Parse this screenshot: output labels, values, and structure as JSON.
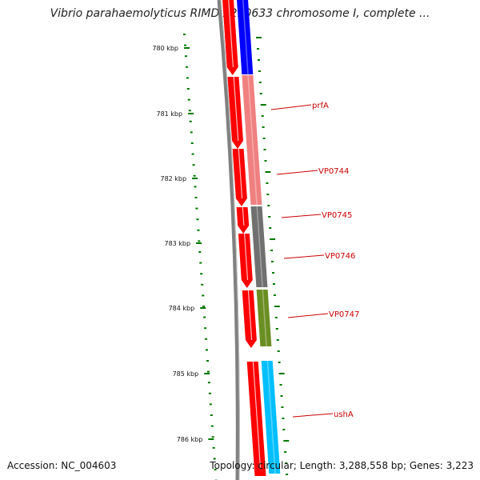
{
  "title": "Vibrio parahaemolyticus RIMD 2210633 chromosome I, complete ...",
  "footer": {
    "accession": "Accession: NC_004603",
    "stats": "Topology: circular; Length: 3,288,558 bp; Genes: 3,223"
  },
  "colors": {
    "strand": "#ff0000",
    "backbone": "#808080",
    "tick": "#007700",
    "label": "#cc0000"
  },
  "scale": {
    "labels": [
      "780 kbp",
      "781 kbp",
      "782 kbp",
      "783 kbp",
      "784 kbp",
      "785 kbp",
      "786 kbp"
    ]
  },
  "genes": [
    {
      "name": "",
      "color": "#0000ff"
    },
    {
      "name": "prfA",
      "color": "#f08080"
    },
    {
      "name": "VP0744",
      "color": "#f08080"
    },
    {
      "name": "VP0745",
      "color": "#707070"
    },
    {
      "name": "VP0746",
      "color": "#707070"
    },
    {
      "name": "VP0747",
      "color": "#6b8e23"
    },
    {
      "name": "ushA",
      "color": "#00bfff"
    }
  ]
}
